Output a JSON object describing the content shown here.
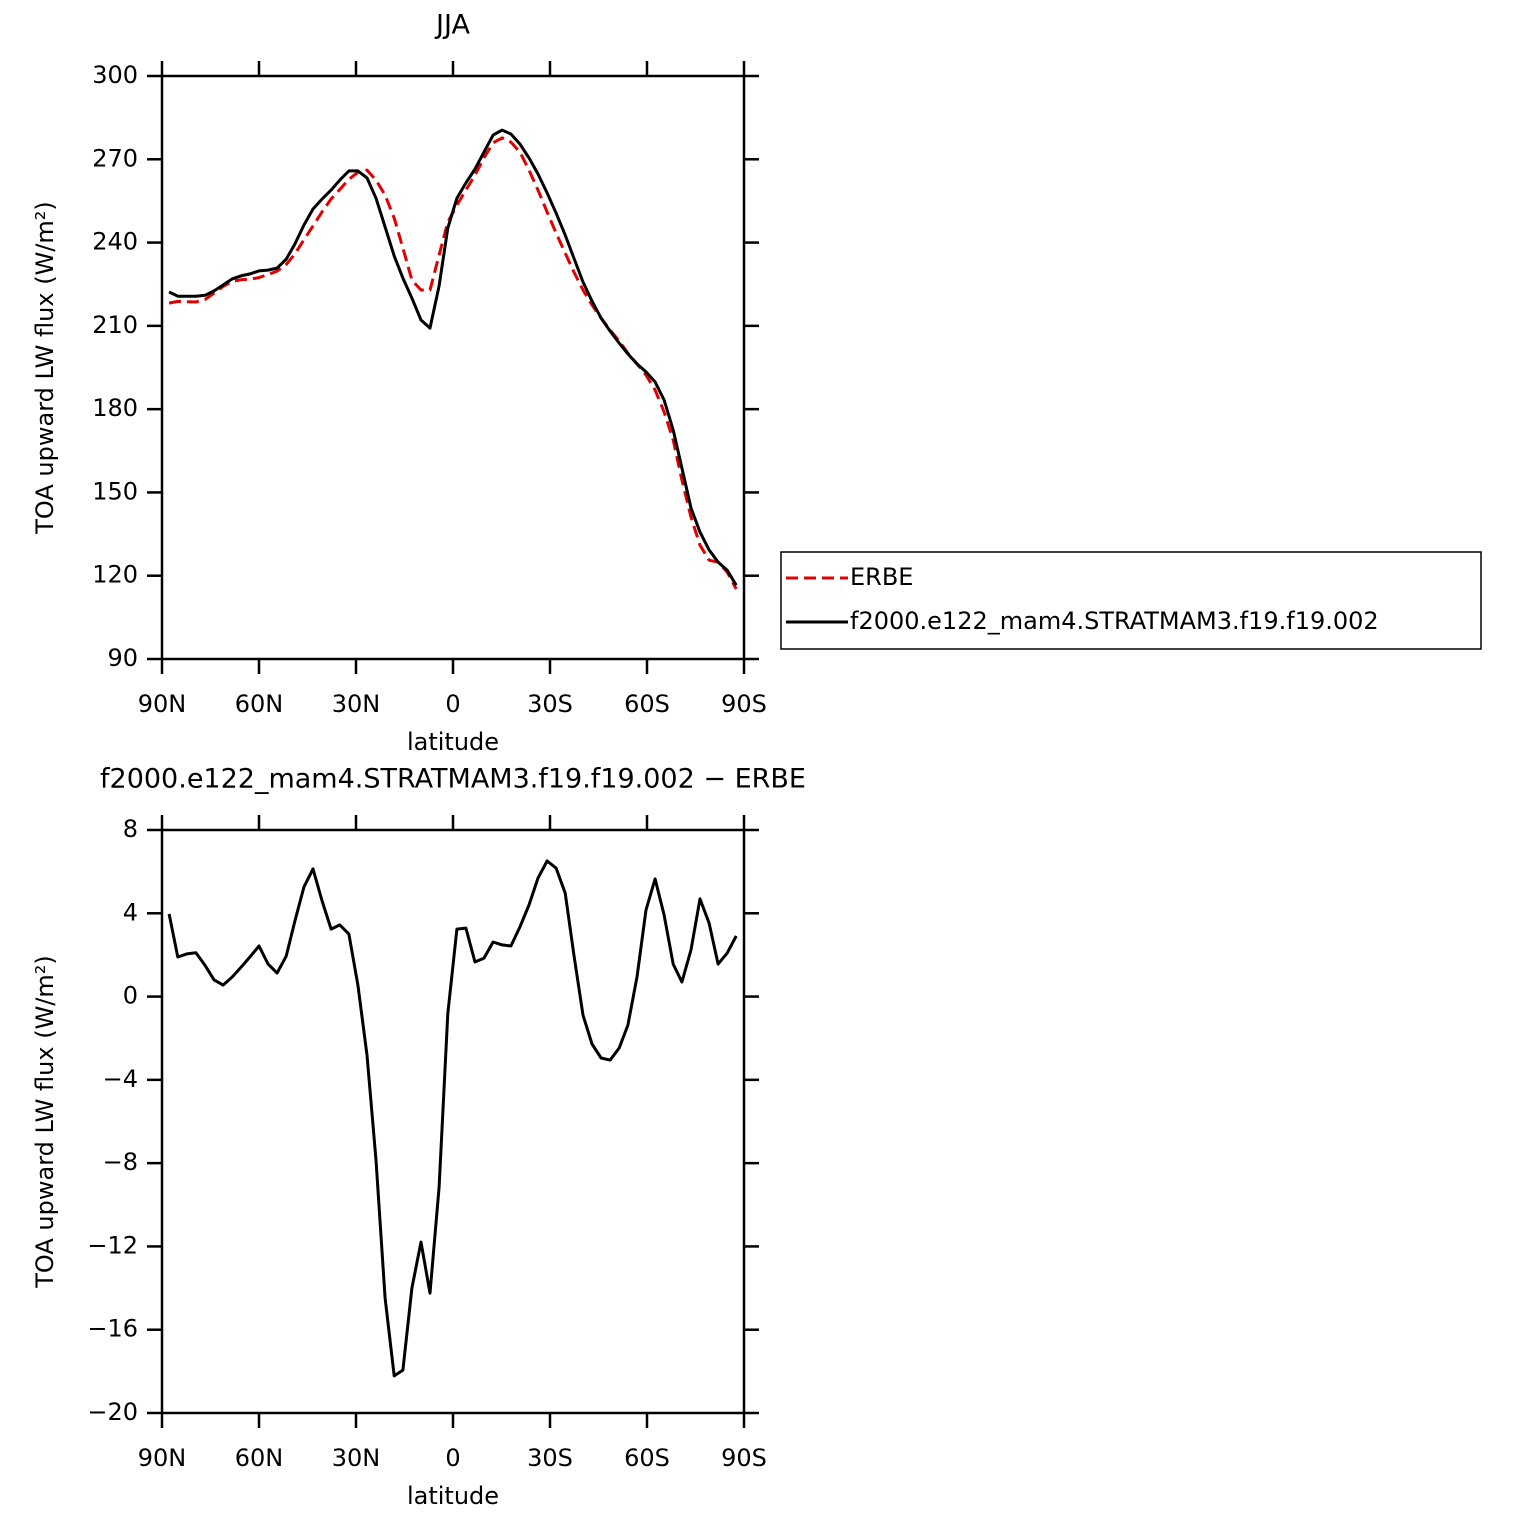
{
  "chart_data": [
    {
      "type": "line",
      "title": "JJA",
      "xlabel": "latitude",
      "ylabel": "TOA upward LW flux (W/m²)",
      "x": [
        87.8,
        85.1,
        82.3,
        79.5,
        76.7,
        73.9,
        71.1,
        68.3,
        65.6,
        62.8,
        60.0,
        57.2,
        54.4,
        51.6,
        48.9,
        46.1,
        43.3,
        40.5,
        37.7,
        35.0,
        32.2,
        29.4,
        26.6,
        23.8,
        21.0,
        18.2,
        15.5,
        12.7,
        9.9,
        7.1,
        4.3,
        1.6,
        -1.2,
        -4.0,
        -6.8,
        -9.6,
        -12.4,
        -15.2,
        -17.9,
        -20.7,
        -23.5,
        -26.3,
        -29.1,
        -31.9,
        -34.7,
        -37.4,
        -40.2,
        -43.0,
        -45.8,
        -48.6,
        -51.4,
        -54.1,
        -56.9,
        -59.7,
        -62.5,
        -65.3,
        -68.1,
        -70.8,
        -73.6,
        -76.4,
        -79.2,
        -82.0,
        -84.8,
        -87.6
      ],
      "series": [
        {
          "name": "ERBE",
          "color": "#e00000",
          "linestyle": "dashed",
          "values": [
            218.2,
            218.8,
            218.7,
            218.6,
            219.5,
            221.8,
            224.2,
            226.0,
            226.6,
            226.8,
            227.4,
            228.5,
            229.7,
            232.1,
            235.9,
            241.0,
            246.0,
            251.1,
            255.7,
            259.1,
            262.8,
            265.3,
            266.1,
            262.5,
            257.1,
            248.8,
            238.0,
            226.5,
            222.9,
            222.9,
            235.5,
            247.4,
            253.5,
            258.9,
            264.3,
            270.5,
            275.9,
            277.7,
            276.2,
            272.6,
            266.1,
            258.9,
            251.0,
            243.4,
            236.2,
            229.4,
            222.9,
            217.5,
            212.8,
            208.5,
            204.5,
            200.2,
            196.3,
            192.3,
            186.9,
            179.0,
            168.9,
            154.5,
            141.1,
            131.0,
            125.6,
            124.9,
            121.3,
            115.2
          ]
        },
        {
          "name": "f2000.e122_mam4.STRATMAM3.f19.f19.002",
          "color": "#000000",
          "linestyle": "solid",
          "values": [
            222.2,
            220.7,
            220.7,
            220.7,
            221.0,
            222.6,
            224.7,
            226.9,
            228.0,
            228.7,
            229.8,
            230.1,
            230.8,
            234.0,
            239.5,
            246.3,
            252.1,
            255.7,
            258.9,
            262.5,
            265.8,
            265.8,
            263.3,
            256.0,
            245.6,
            235.2,
            227.2,
            220.0,
            212.1,
            209.2,
            224.4,
            245.2,
            256.0,
            261.5,
            266.5,
            272.6,
            278.7,
            280.5,
            279.1,
            275.5,
            270.5,
            264.7,
            257.9,
            250.6,
            242.7,
            234.4,
            225.8,
            218.9,
            212.8,
            208.1,
            203.8,
            199.9,
            196.3,
            193.4,
            189.8,
            183.3,
            172.5,
            158.8,
            144.4,
            135.7,
            129.3,
            124.9,
            122.0,
            116.6
          ]
        }
      ],
      "xlim": [
        90,
        -90
      ],
      "xticks": [
        {
          "value": 90,
          "label": "90N"
        },
        {
          "value": 60,
          "label": "60N"
        },
        {
          "value": 30,
          "label": "30N"
        },
        0,
        {
          "value": -30,
          "label": "30S"
        },
        {
          "value": -60,
          "label": "60S"
        },
        {
          "value": -90,
          "label": "90S"
        }
      ],
      "ylim": [
        90,
        300
      ],
      "yticks": [
        90,
        120,
        150,
        180,
        210,
        240,
        270,
        300
      ],
      "legend": "right"
    },
    {
      "type": "line",
      "title": "f2000.e122_mam4.STRATMAM3.f19.f19.002 − ERBE",
      "xlabel": "latitude",
      "ylabel": "TOA upward LW flux (W/m²)",
      "x": [
        87.8,
        85.1,
        82.3,
        79.5,
        76.7,
        73.9,
        71.1,
        68.3,
        65.6,
        62.8,
        60.0,
        57.2,
        54.4,
        51.6,
        48.9,
        46.1,
        43.3,
        40.5,
        37.7,
        35.0,
        32.2,
        29.4,
        26.6,
        23.8,
        21.0,
        18.2,
        15.5,
        12.7,
        9.9,
        7.1,
        4.3,
        1.6,
        -1.2,
        -4.0,
        -6.8,
        -9.6,
        -12.4,
        -15.2,
        -17.9,
        -20.7,
        -23.5,
        -26.3,
        -29.1,
        -31.9,
        -34.7,
        -37.4,
        -40.2,
        -43.0,
        -45.8,
        -48.6,
        -51.4,
        -54.1,
        -56.9,
        -59.7,
        -62.5,
        -65.3,
        -68.1,
        -70.8,
        -73.6,
        -76.4,
        -79.2,
        -82.0,
        -84.8,
        -87.6
      ],
      "values": [
        3.97,
        1.9,
        2.05,
        2.1,
        1.5,
        0.8,
        0.55,
        0.94,
        1.4,
        1.9,
        2.43,
        1.56,
        1.13,
        1.94,
        3.63,
        5.26,
        6.13,
        4.59,
        3.24,
        3.44,
        3.0,
        0.55,
        -2.81,
        -7.85,
        -14.48,
        -18.22,
        -17.94,
        -14.0,
        -11.79,
        -14.24,
        -9.15,
        -0.82,
        3.24,
        3.29,
        1.66,
        1.85,
        2.62,
        2.48,
        2.43,
        3.34,
        4.4,
        5.69,
        6.51,
        6.17,
        4.97,
        2.0,
        -0.89,
        -2.28,
        -2.95,
        -3.05,
        -2.47,
        -1.37,
        0.94,
        4.16,
        5.65,
        3.92,
        1.56,
        0.7,
        2.24,
        4.69,
        3.53,
        1.56,
        2.09,
        2.91
      ],
      "color": "#000000",
      "xlim": [
        90,
        -90
      ],
      "xticks": [
        {
          "value": 90,
          "label": "90N"
        },
        {
          "value": 60,
          "label": "60N"
        },
        {
          "value": 30,
          "label": "30N"
        },
        0,
        {
          "value": -30,
          "label": "30S"
        },
        {
          "value": -60,
          "label": "60S"
        },
        {
          "value": -90,
          "label": "90S"
        }
      ],
      "ylim": [
        -20,
        8
      ],
      "yticks": [
        {
          "value": -20,
          "label": "−20"
        },
        {
          "value": -16,
          "label": "−16"
        },
        {
          "value": -12,
          "label": "−12"
        },
        {
          "value": -8,
          "label": "−8"
        },
        {
          "value": -4,
          "label": "−4"
        },
        0,
        4,
        8
      ]
    }
  ]
}
